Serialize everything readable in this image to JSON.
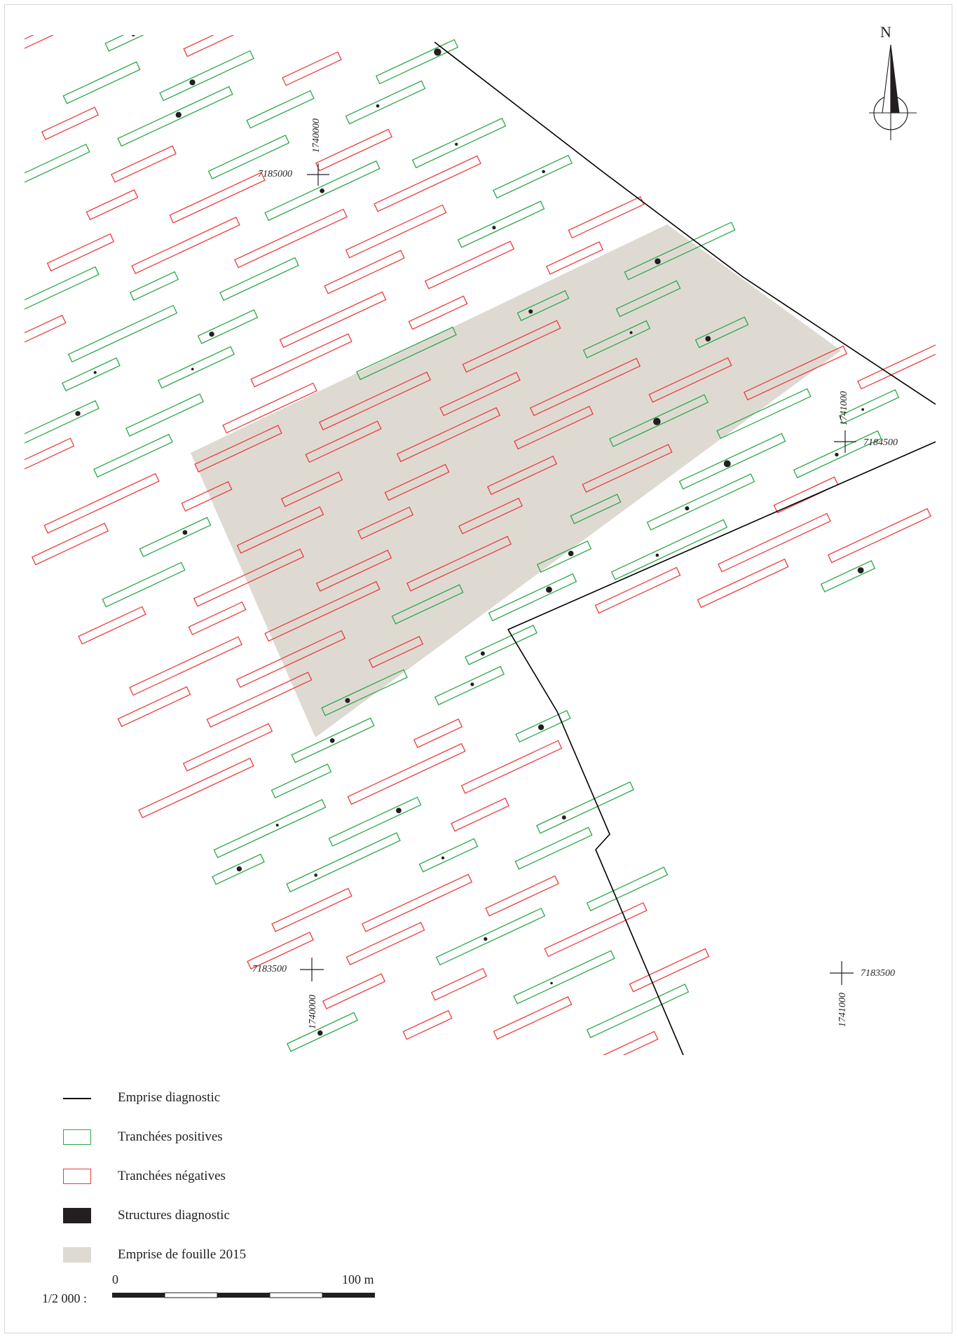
{
  "north_label": "N",
  "coordinates": [
    {
      "text": "7185000",
      "axis": "y"
    },
    {
      "text": "1740000",
      "axis": "x"
    },
    {
      "text": "1741000",
      "axis": "x"
    },
    {
      "text": "7184500",
      "axis": "y"
    },
    {
      "text": "7183500",
      "axis": "y"
    },
    {
      "text": "1740000",
      "axis": "x"
    },
    {
      "text": "7183500",
      "axis": "y"
    },
    {
      "text": "1741000",
      "axis": "x"
    }
  ],
  "legend": [
    {
      "label": "Emprise diagnostic",
      "kind": "line",
      "color": "#000000"
    },
    {
      "label": "Tranchées positives",
      "kind": "outline",
      "color": "#2aa84a"
    },
    {
      "label": "Tranchées négatives",
      "kind": "outline",
      "color": "#ec3b3f"
    },
    {
      "label": "Structures diagnostic",
      "kind": "fill",
      "color": "#231f20"
    },
    {
      "label": "Emprise de fouille 2015",
      "kind": "fill",
      "color": "#dedad2"
    }
  ],
  "scale": {
    "ratio": "1/2 000 :",
    "start": "0",
    "end": "100 m"
  },
  "colors": {
    "positive": "#2aa84a",
    "negative": "#ec3b3f",
    "structure": "#231f20",
    "excavation": "#dedad2",
    "boundary": "#000000"
  }
}
